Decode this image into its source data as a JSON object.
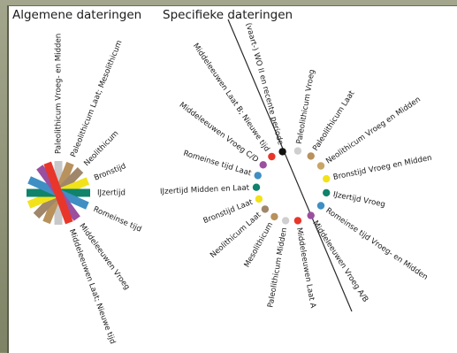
{
  "headings": {
    "general": "Algemene dateringen",
    "specific": "Specifieke dateringen"
  },
  "general_rays": [
    {
      "label": "Paleolithicum Vroeg- en Midden",
      "angle": -90,
      "color": "#c8c8c8"
    },
    {
      "label": "Paleolithicum Laat; Mesolithicum",
      "angle": -68,
      "color": "#b8915c"
    },
    {
      "label": "Neolithicum",
      "angle": -46,
      "color": "#a0866a"
    },
    {
      "label": "Bronstijd",
      "angle": -22,
      "color": "#f2e21a"
    },
    {
      "label": "IJzertijd",
      "angle": 0,
      "color": "#10836a"
    },
    {
      "label": "Romeinse tijd",
      "angle": 24,
      "color": "#3f8fc4"
    },
    {
      "label": "Middeleeuwen Vroeg",
      "angle": 54,
      "color": "#9b4f9f"
    },
    {
      "label": "Middeleeuwen Laat; Nieuwe tijd",
      "angle": 70,
      "color": "#e8362a"
    }
  ],
  "specific_items": [
    {
      "label": "Paleolithicum Vroeg",
      "color": "#cfcfcf"
    },
    {
      "label": "Paleolithicum Laat",
      "color": "#b8915c"
    },
    {
      "label": "Neolithicum Vroeg en Midden",
      "color": "#c9a566"
    },
    {
      "label": "Bronstijd Vroeg en Midden",
      "color": "#f2e21a"
    },
    {
      "label": "IJzertijd Vroeg",
      "color": "#10836a"
    },
    {
      "label": "Romeinse tijd Vroeg- en Midden",
      "color": "#3f8fc4"
    },
    {
      "label": "Middeleeuwen Vroeg A/B",
      "color": "#9b4f9f"
    },
    {
      "label": "Middeleeuwen Laat A",
      "color": "#e8362a"
    },
    {
      "label": "Paleolithicum Midden",
      "color": "#cfcfcf"
    },
    {
      "label": "Mesolithicum",
      "color": "#b8915c"
    },
    {
      "label": "Neolithicum Laat",
      "color": "#a0866a"
    },
    {
      "label": "Bronstijd Laat",
      "color": "#f2e21a"
    },
    {
      "label": "IJzertijd Midden en Laat",
      "color": "#10836a"
    },
    {
      "label": "Romeinse tijd Laat",
      "color": "#3f8fc4"
    },
    {
      "label": "Middeleeuwen Vroeg C/D",
      "color": "#9b4f9f"
    },
    {
      "label": "Middeleeuwen Laat B; Nieuwe tijd",
      "color": "#e8362a"
    },
    {
      "label": "(vaart-) WO II en recente periode",
      "color": "#111111"
    }
  ]
}
